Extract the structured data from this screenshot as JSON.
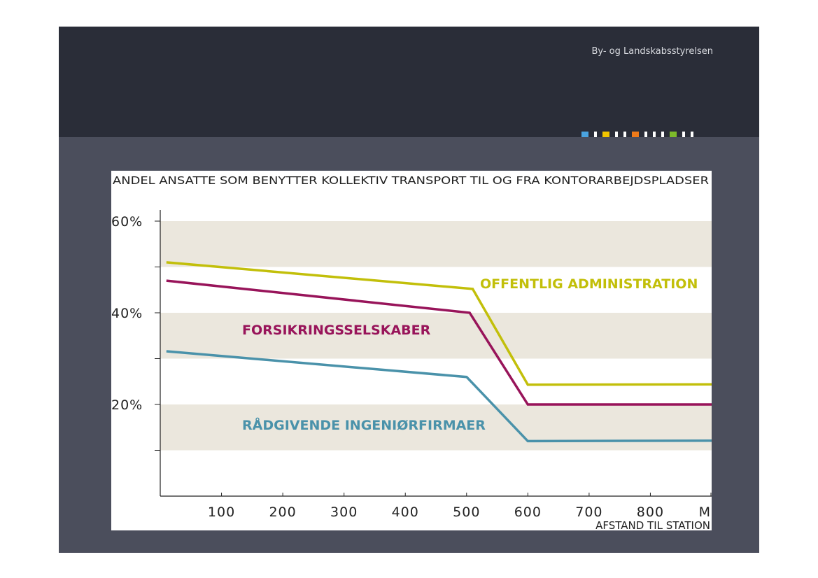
{
  "header": {
    "org_name": "By- og Landskabsstyrelsen"
  },
  "color_bar": {
    "colors": [
      "#4aa3df",
      "#ffffff",
      "#f2c500",
      "#ffffff",
      "#ffffff",
      "#ee7a1a",
      "#ffffff",
      "#ffffff",
      "#ffffff",
      "#7dbb2a",
      "#ffffff",
      "#ffffff"
    ]
  },
  "chart_data": {
    "type": "line",
    "title": "ANDEL ANSATTE SOM BENYTTER KOLLEKTIV TRANSPORT TIL OG FRA KONTORARBEJDSPLADSER",
    "xlabel": "AFSTAND TIL STATION",
    "x_unit_label": "M",
    "x_ticks": [
      100,
      200,
      300,
      400,
      500,
      600,
      700,
      800
    ],
    "y_ticks": [
      {
        "value": 20,
        "label": "20%"
      },
      {
        "value": 40,
        "label": "40%"
      },
      {
        "value": 60,
        "label": "60%"
      }
    ],
    "xlim": [
      0,
      900
    ],
    "ylim": [
      0,
      60
    ],
    "grid_bands": [
      [
        10,
        20
      ],
      [
        30,
        40
      ],
      [
        50,
        60
      ]
    ],
    "band_color": "#ebe7dd",
    "series": [
      {
        "name": "OFFENTLIG ADMINISTRATION",
        "color": "#c2bf0a",
        "points": [
          [
            10,
            51
          ],
          [
            510,
            45.2
          ],
          [
            600,
            24.3
          ],
          [
            900,
            24.4
          ]
        ]
      },
      {
        "name": "FORSIKRINGSSELSKABER",
        "color": "#98145a",
        "points": [
          [
            10,
            47
          ],
          [
            505,
            40
          ],
          [
            600,
            20
          ],
          [
            900,
            20
          ]
        ]
      },
      {
        "name": "RÅDGIVENDE INGENIØRFIRMAER",
        "color": "#4a92aa",
        "points": [
          [
            10,
            31.6
          ],
          [
            500,
            26
          ],
          [
            600,
            12
          ],
          [
            900,
            12.1
          ]
        ]
      }
    ]
  }
}
